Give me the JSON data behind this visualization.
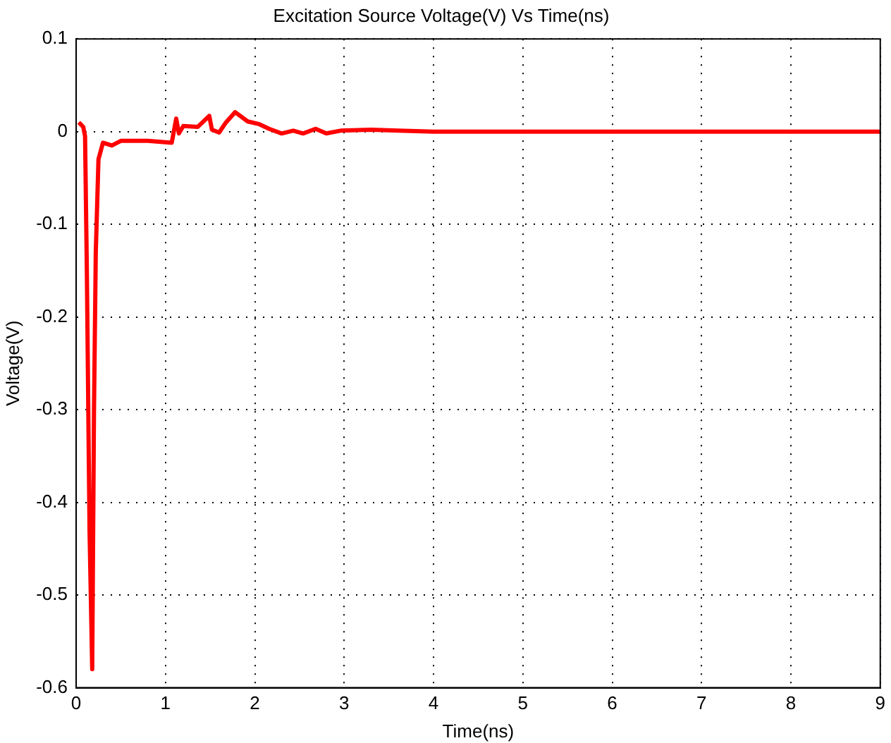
{
  "chart_data": {
    "type": "line",
    "title": "Excitation Source Voltage(V) Vs Time(ns)",
    "xlabel": "Time(ns)",
    "ylabel": "Voltage(V)",
    "xlim": [
      0,
      9
    ],
    "ylim": [
      -0.6,
      0.1
    ],
    "xticks": [
      0,
      1,
      2,
      3,
      4,
      5,
      6,
      7,
      8,
      9
    ],
    "yticks": [
      -0.6,
      -0.5,
      -0.4,
      -0.3,
      -0.2,
      -0.1,
      0,
      0.1
    ],
    "grid": true,
    "marker": "none",
    "line_style": "solid",
    "series": [
      {
        "color": "#ff0000",
        "x": [
          0.03,
          0.08,
          0.1,
          0.12,
          0.15,
          0.18,
          0.2,
          0.22,
          0.25,
          0.3,
          0.4,
          0.5,
          0.8,
          1.07,
          1.12,
          1.15,
          1.2,
          1.36,
          1.49,
          1.52,
          1.6,
          1.67,
          1.78,
          1.92,
          2.05,
          2.16,
          2.3,
          2.43,
          2.54,
          2.68,
          2.8,
          2.96,
          3.3,
          3.6,
          4,
          5,
          6,
          7,
          8,
          9
        ],
        "values": [
          0.01,
          0.005,
          -0.005,
          -0.15,
          -0.43,
          -0.58,
          -0.3,
          -0.13,
          -0.03,
          -0.012,
          -0.015,
          -0.01,
          -0.01,
          -0.012,
          0.014,
          -0.002,
          0.006,
          0.005,
          0.017,
          0.002,
          -0.001,
          0.009,
          0.021,
          0.011,
          0.008,
          0.003,
          -0.002,
          0.001,
          -0.002,
          0.003,
          -0.002,
          0.001,
          0.002,
          0.001,
          0,
          0,
          0,
          0,
          0,
          0
        ]
      }
    ]
  }
}
